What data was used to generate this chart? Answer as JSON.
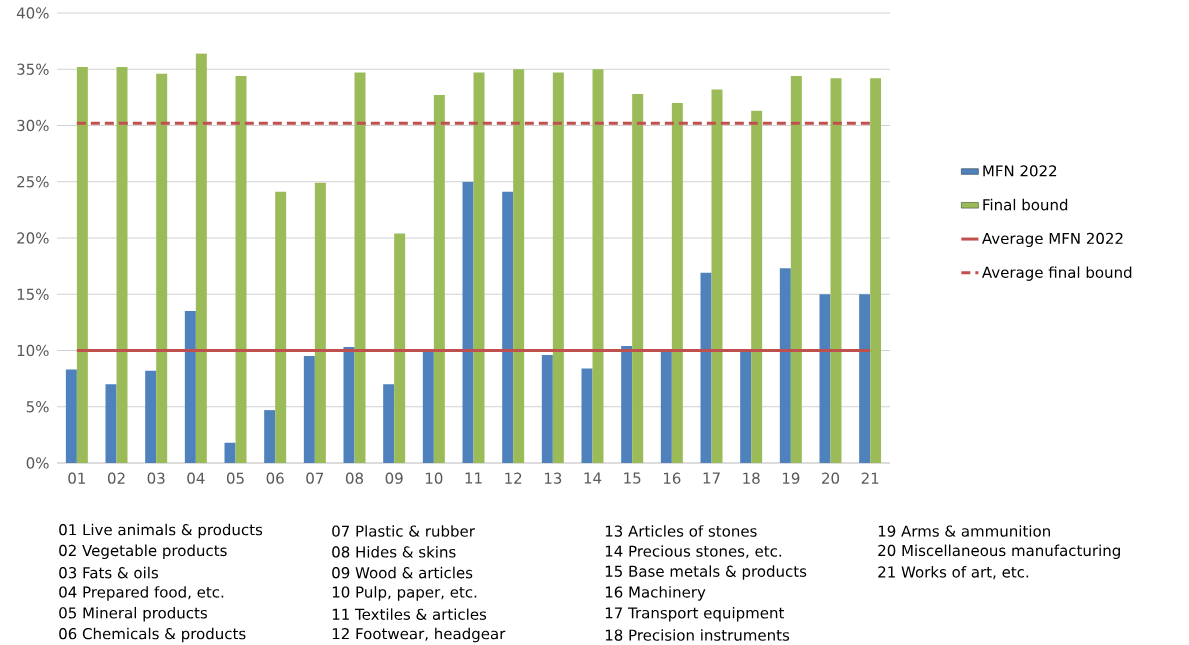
{
  "chart_data": {
    "type": "bar",
    "categories": [
      "01",
      "02",
      "03",
      "04",
      "05",
      "06",
      "07",
      "08",
      "09",
      "10",
      "11",
      "12",
      "13",
      "14",
      "15",
      "16",
      "17",
      "18",
      "19",
      "20",
      "21"
    ],
    "series": [
      {
        "name": "MFN 2022",
        "color": "#4f81bd",
        "values": [
          8.3,
          7.0,
          8.2,
          13.5,
          1.8,
          4.7,
          9.5,
          10.3,
          7.0,
          10.0,
          25.0,
          24.1,
          9.6,
          8.4,
          10.4,
          10.0,
          16.9,
          10.0,
          17.3,
          15.0,
          15.0
        ]
      },
      {
        "name": "Final bound",
        "color": "#9bbb59",
        "values": [
          35.2,
          35.2,
          34.6,
          36.4,
          34.4,
          24.1,
          24.9,
          34.7,
          20.4,
          32.7,
          34.7,
          35.0,
          34.7,
          35.0,
          32.8,
          32.0,
          33.2,
          31.3,
          34.4,
          34.2,
          34.2
        ]
      },
      {
        "name": "Average MFN 2022",
        "type": "line",
        "line_style": "solid",
        "color": "#c0504d",
        "values": [
          10.0,
          10.0,
          10.0,
          10.0,
          10.0,
          10.0,
          10.0,
          10.0,
          10.0,
          10.0,
          10.0,
          10.0,
          10.0,
          10.0,
          10.0,
          10.0,
          10.0,
          10.0,
          10.0,
          10.0,
          10.0
        ]
      },
      {
        "name": "Average final bound",
        "type": "line",
        "line_style": "dashed",
        "color": "#c0504d",
        "values": [
          30.2,
          30.2,
          30.2,
          30.2,
          30.2,
          30.2,
          30.2,
          30.2,
          30.2,
          30.2,
          30.2,
          30.2,
          30.2,
          30.2,
          30.2,
          30.2,
          30.2,
          30.2,
          30.2,
          30.2,
          30.2
        ]
      }
    ],
    "ylim": [
      0,
      40
    ],
    "yticks": [
      {
        "value": 0,
        "label": "0%"
      },
      {
        "value": 5,
        "label": "5%"
      },
      {
        "value": 10,
        "label": "10%"
      },
      {
        "value": 15,
        "label": "15%"
      },
      {
        "value": 20,
        "label": "20%"
      },
      {
        "value": 25,
        "label": "25%"
      },
      {
        "value": 30,
        "label": "30%"
      },
      {
        "value": 35,
        "label": "35%"
      },
      {
        "value": 40,
        "label": "40%"
      }
    ],
    "grid": "y",
    "legend": "right",
    "marker": "none",
    "annotations": [
      "01 Live animals & products",
      "02 Vegetable products",
      "03 Fats & oils",
      "04 Prepared food, etc.",
      "05 Mineral products",
      "06 Chemicals & products",
      "07 Plastic & rubber",
      "08 Hides & skins",
      "09 Wood & articles",
      "10 Pulp, paper, etc.",
      "11 Textiles & articles",
      "12 Footwear, headgear",
      "13 Articles of stones",
      "14 Precious stones, etc.",
      "15 Base metals & products",
      "16 Machinery",
      "17 Transport equipment",
      "18 Precision instruments",
      "19 Arms & ammunition",
      "20 Miscellaneous manufacturing",
      "21 Works of art, etc."
    ]
  }
}
